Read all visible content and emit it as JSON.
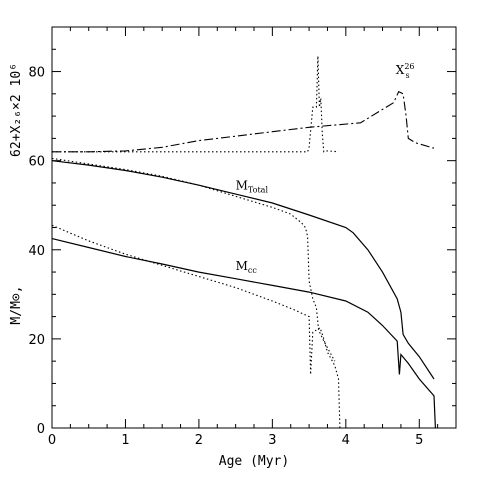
{
  "chart_data": {
    "type": "line",
    "title": "",
    "xlabel": "Age (Myr)",
    "ylabel_lower": "M/M⊙,",
    "ylabel_upper": "62+X₂₆×2 10⁶",
    "xlim": [
      0,
      5.5
    ],
    "ylim": [
      0,
      90
    ],
    "x_ticks": [
      0,
      1,
      2,
      3,
      4,
      5
    ],
    "y_ticks": [
      0,
      20,
      40,
      60,
      80
    ],
    "grid": false,
    "annotations": [
      {
        "id": "x26",
        "main": "X",
        "sub": "s",
        "sup": "26",
        "x": 4.68,
        "y": 79.5
      },
      {
        "id": "mtotal",
        "main": "M",
        "sub": "Total",
        "sup": "",
        "x": 2.5,
        "y": 53.5
      },
      {
        "id": "mcc",
        "main": "M",
        "sub": "cc",
        "sup": "",
        "x": 2.5,
        "y": 35.5
      }
    ],
    "series": [
      {
        "style": "solid",
        "points": [
          [
            0,
            60
          ],
          [
            0.5,
            59
          ],
          [
            1,
            57.8
          ],
          [
            1.5,
            56.3
          ],
          [
            2,
            54.5
          ],
          [
            2.5,
            52.5
          ],
          [
            3,
            50.5
          ],
          [
            3.5,
            47.8
          ],
          [
            4,
            45
          ],
          [
            4.1,
            43.8
          ],
          [
            4.3,
            40
          ],
          [
            4.5,
            35
          ],
          [
            4.7,
            29
          ],
          [
            4.75,
            26
          ],
          [
            4.78,
            21
          ],
          [
            4.85,
            19
          ],
          [
            5,
            16
          ],
          [
            5.2,
            11
          ]
        ]
      },
      {
        "style": "solid",
        "points": [
          [
            0,
            42.5
          ],
          [
            0.5,
            40.5
          ],
          [
            1,
            38.5
          ],
          [
            1.5,
            36.8
          ],
          [
            2,
            35
          ],
          [
            2.5,
            33.5
          ],
          [
            3,
            32
          ],
          [
            3.5,
            30.5
          ],
          [
            4,
            28.5
          ],
          [
            4.3,
            26
          ],
          [
            4.5,
            23
          ],
          [
            4.7,
            19.5
          ],
          [
            4.73,
            12
          ],
          [
            4.75,
            16.5
          ],
          [
            4.85,
            14.5
          ],
          [
            5,
            11
          ],
          [
            5.2,
            7.2
          ],
          [
            5.22,
            0
          ]
        ]
      },
      {
        "style": "dashed",
        "points": [
          [
            0,
            62
          ],
          [
            0.5,
            62
          ],
          [
            1,
            62.2
          ],
          [
            1.5,
            63
          ],
          [
            2,
            64.5
          ],
          [
            2.5,
            65.5
          ],
          [
            3,
            66.5
          ],
          [
            3.5,
            67.5
          ],
          [
            4.2,
            68.5
          ],
          [
            4.3,
            69.5
          ],
          [
            4.5,
            71.5
          ],
          [
            4.65,
            73
          ],
          [
            4.72,
            75.5
          ],
          [
            4.78,
            75
          ],
          [
            4.82,
            70
          ],
          [
            4.85,
            65
          ],
          [
            4.95,
            64
          ],
          [
            5.2,
            62.8
          ]
        ]
      },
      {
        "style": "dotted",
        "points": [
          [
            0,
            62
          ],
          [
            1,
            62
          ],
          [
            2,
            62
          ],
          [
            3,
            62
          ],
          [
            3.48,
            62
          ],
          [
            3.5,
            63
          ],
          [
            3.55,
            72
          ],
          [
            3.6,
            72
          ],
          [
            3.62,
            83.5
          ],
          [
            3.64,
            72
          ],
          [
            3.66,
            74
          ],
          [
            3.68,
            66
          ],
          [
            3.7,
            62
          ],
          [
            3.75,
            62.2
          ],
          [
            3.9,
            62
          ]
        ]
      },
      {
        "style": "dotted",
        "points": [
          [
            0,
            60.5
          ],
          [
            1,
            58
          ],
          [
            1.5,
            56.5
          ],
          [
            2,
            54.5
          ],
          [
            2.5,
            52
          ],
          [
            3,
            49.5
          ],
          [
            3.25,
            48
          ],
          [
            3.4,
            46
          ],
          [
            3.45,
            45
          ],
          [
            3.48,
            43
          ],
          [
            3.5,
            33
          ],
          [
            3.55,
            29
          ],
          [
            3.6,
            27
          ],
          [
            3.63,
            22
          ],
          [
            3.7,
            19.5
          ],
          [
            3.85,
            15
          ]
        ]
      },
      {
        "style": "dotted",
        "points": [
          [
            0,
            45.5
          ],
          [
            0.5,
            42
          ],
          [
            1,
            39
          ],
          [
            1.5,
            36.5
          ],
          [
            2,
            34
          ],
          [
            2.5,
            31.5
          ],
          [
            3,
            28.5
          ],
          [
            3.3,
            26.5
          ],
          [
            3.5,
            25
          ],
          [
            3.52,
            12
          ],
          [
            3.55,
            21.5
          ],
          [
            3.6,
            22
          ],
          [
            3.65,
            22.5
          ],
          [
            3.7,
            20
          ],
          [
            3.75,
            17
          ],
          [
            3.85,
            14
          ],
          [
            3.9,
            11
          ],
          [
            3.92,
            0
          ]
        ]
      }
    ]
  }
}
